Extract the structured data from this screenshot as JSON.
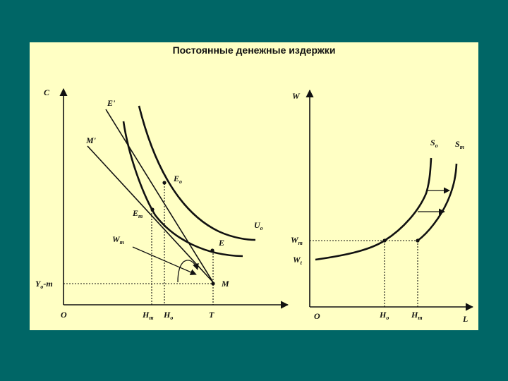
{
  "title": "Постоянные денежные издержки",
  "left_graph": {
    "y_axis_label": "C",
    "origin": "O",
    "labels": {
      "E_prime": "E'",
      "M_prime": "M'",
      "E_o": "E",
      "E_o_sub": "o",
      "E_m": "E",
      "E_m_sub": "m",
      "W_m": "W",
      "W_m_sub": "m",
      "E": "E",
      "M": "M",
      "U_o": "U",
      "U_o_sub": "o",
      "Y_o_m": "Y",
      "Y_o_m_sub": "o",
      "Y_o_m_tail": "-m",
      "H_m": "H",
      "H_m_sub": "m",
      "H_o": "H",
      "H_o_sub": "o",
      "T": "T"
    }
  },
  "right_graph": {
    "y_axis_label": "W",
    "x_axis_label": "L",
    "origin": "O",
    "labels": {
      "S_o": "S",
      "S_o_sub": "o",
      "S_m": "S",
      "S_m_sub": "m",
      "W_m": "W",
      "W_m_sub": "m",
      "W_t": "W",
      "W_t_sub": "t",
      "H_o": "H",
      "H_o_sub": "o",
      "H_m": "H",
      "H_m_sub": "m"
    }
  }
}
